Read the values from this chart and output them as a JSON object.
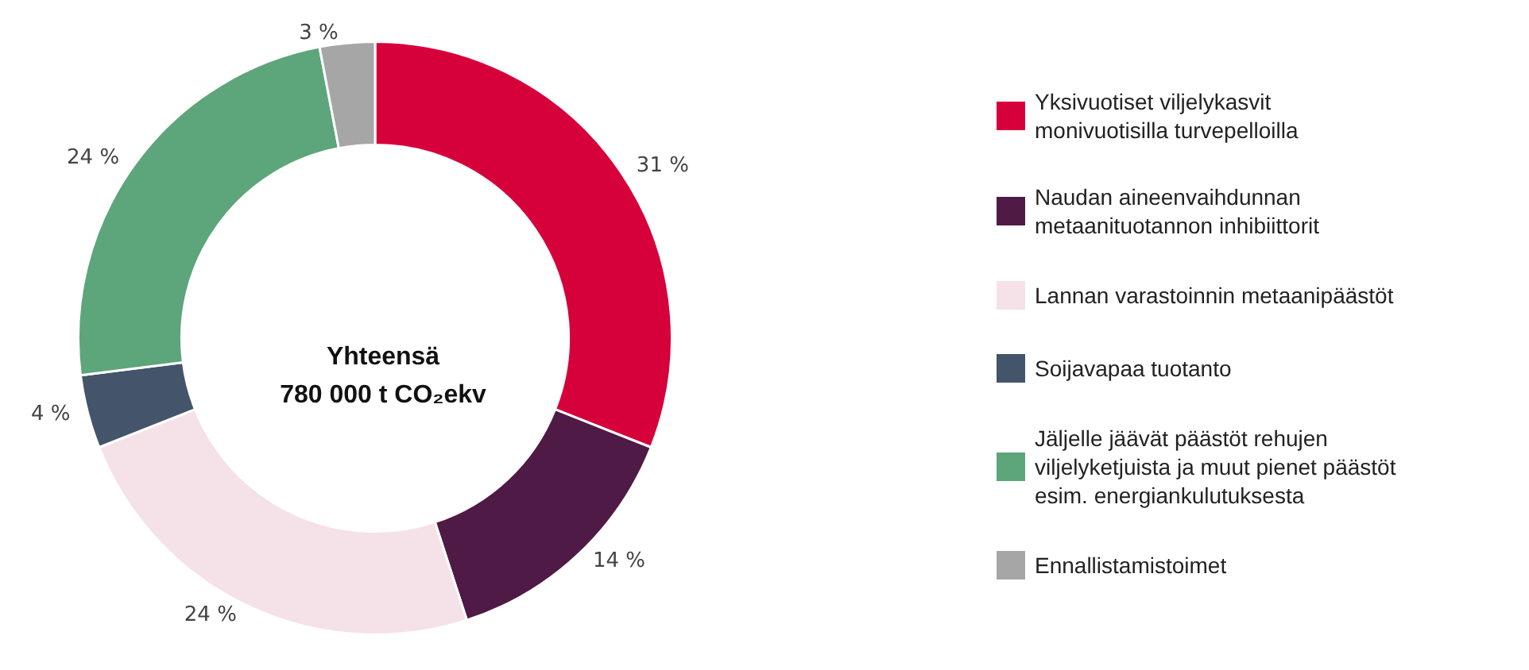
{
  "chart_data": {
    "type": "donut",
    "title": "Yhteensä\n780 000 t CO₂ekv",
    "categories": [
      "Yksivuotiset viljelykasvit\nmonivuotisilla turvepelloilla",
      "Naudan aineenvaihdunnan\nmetaanituotannon inhibiittorit",
      "Lannan varastoinnin metaanipäästöt",
      "Soijavapaa tuotanto",
      "Jäljelle jäävät päästöt rehujen\nviljelyketjuista ja muut pienet päästöt\nesim. energiankulutuksesta",
      "Ennallistamistoimet"
    ],
    "values": [
      31,
      14,
      24,
      4,
      24,
      3
    ],
    "colors": [
      "#d6003a",
      "#4f1a45",
      "#f5e1e8",
      "#44546a",
      "#5da57a",
      "#a6a6a6"
    ],
    "value_labels": [
      "31 %",
      "14 %",
      "24 %",
      "4 %",
      "24 %",
      "3 %"
    ],
    "legend": "right"
  }
}
